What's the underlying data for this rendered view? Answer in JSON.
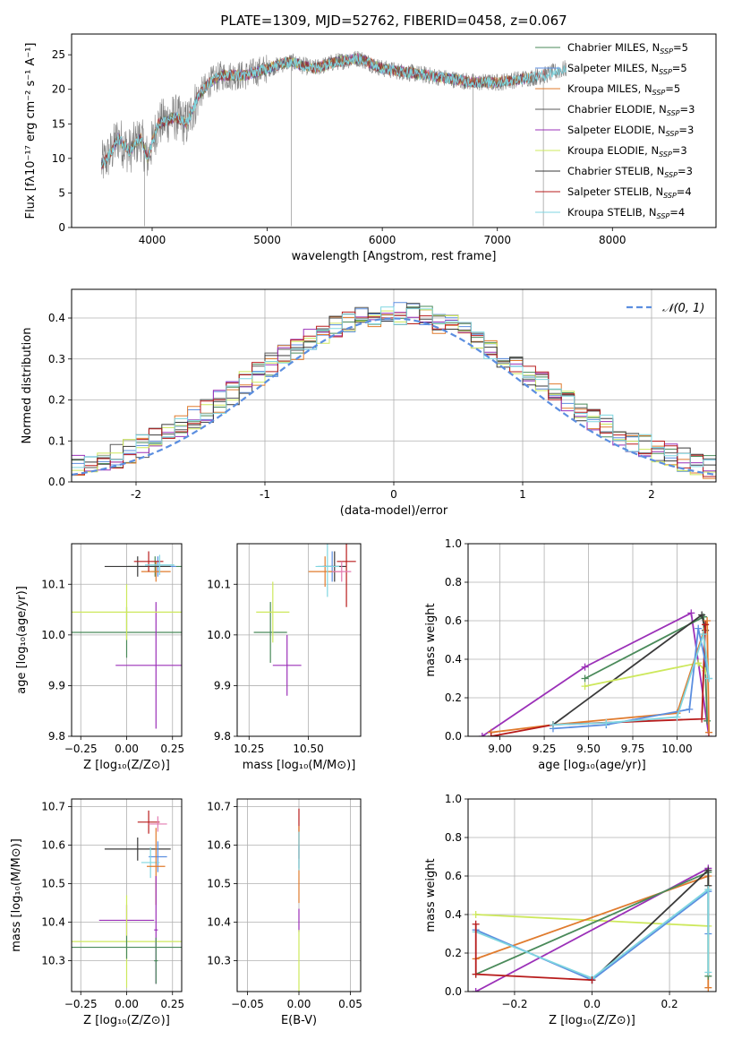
{
  "chart_data": [
    {
      "id": "spectrum",
      "type": "line",
      "title": "PLATE=1309, MJD=52762, FIBERID=0458, z=0.067",
      "xlabel": "wavelength [Angstrom, rest frame]",
      "ylabel": "Flux [fλ10⁻¹⁷ erg cm⁻² s⁻¹ A⁻¹]",
      "xlim": [
        3300,
        8900
      ],
      "ylim": [
        0,
        28
      ],
      "xticks": [
        4000,
        5000,
        6000,
        7000,
        8000
      ],
      "yticks": [
        0,
        5,
        10,
        15,
        20,
        25
      ],
      "grid": false,
      "legend_position": "right",
      "spectrum_profile": {
        "x": [
          3560,
          3650,
          3700,
          3800,
          3900,
          3960,
          4050,
          4200,
          4300,
          4400,
          4500,
          4600,
          4700,
          4800,
          5000,
          5200,
          5400,
          5600,
          5800,
          6000,
          6200,
          6400,
          6600,
          6800,
          7000,
          7200,
          7400,
          7500,
          7600
        ],
        "y": [
          9,
          11,
          13,
          11,
          13,
          10,
          15,
          16,
          15,
          19,
          21,
          22,
          22,
          22,
          23,
          24,
          23,
          24,
          24.5,
          23,
          22.5,
          22,
          21.5,
          21,
          21,
          21.5,
          22,
          22.5,
          23
        ]
      },
      "series": [
        {
          "name": "Chabrier MILES, N",
          "sub": "SSP",
          "suffix": "=5",
          "color": "#4a8a5a"
        },
        {
          "name": "Salpeter MILES, N",
          "sub": "SSP",
          "suffix": "=5",
          "color": "#5b8ee0"
        },
        {
          "name": "Kroupa MILES, N",
          "sub": "SSP",
          "suffix": "=5",
          "color": "#e07b2e"
        },
        {
          "name": "Chabrier ELODIE, N",
          "sub": "SSP",
          "suffix": "=3",
          "color": "#595959"
        },
        {
          "name": "Salpeter ELODIE, N",
          "sub": "SSP",
          "suffix": "=3",
          "color": "#9b30b8"
        },
        {
          "name": "Kroupa ELODIE, N",
          "sub": "SSP",
          "suffix": "=3",
          "color": "#cde85c"
        },
        {
          "name": "Chabrier STELIB, N",
          "sub": "SSP",
          "suffix": "=3",
          "color": "#3a3a3a"
        },
        {
          "name": "Salpeter STELIB, N",
          "sub": "SSP",
          "suffix": "=4",
          "color": "#b81c1c"
        },
        {
          "name": "Kroupa STELIB, N",
          "sub": "SSP",
          "suffix": "=4",
          "color": "#7fd6e0"
        }
      ]
    },
    {
      "id": "residuals",
      "type": "line",
      "xlabel": "(data-model)/error",
      "ylabel": "Normed distribution",
      "xlim": [
        -2.5,
        2.5
      ],
      "ylim": [
        0,
        0.47
      ],
      "xticks": [
        -2,
        -1,
        0,
        1,
        2
      ],
      "yticks": [
        0.0,
        0.1,
        0.2,
        0.3,
        0.4
      ],
      "grid": true,
      "legend_position": "top-right",
      "normal_label": "𝒩(0, 1)",
      "normal_color": "#5b8ee0",
      "bin_width": 0.1
    },
    {
      "id": "age_vs_Z",
      "type": "scatter",
      "xlabel": "Z [log₁₀(Z/Z⊙)]",
      "ylabel": "age  [log₁₀(age/yr)]",
      "xlim": [
        -0.3,
        0.3
      ],
      "ylim": [
        9.8,
        10.18
      ],
      "xticks": [
        -0.25,
        0.0,
        0.25
      ],
      "yticks": [
        9.8,
        9.9,
        10.0,
        10.1
      ],
      "grid": true,
      "points": [
        {
          "x": 0.155,
          "y": 10.135,
          "xerr": 0.15,
          "yerr": 0.02,
          "color": "#4a8a5a"
        },
        {
          "x": 0.17,
          "y": 10.135,
          "xerr": 0.1,
          "yerr": 0.02,
          "color": "#5b8ee0"
        },
        {
          "x": 0.16,
          "y": 10.125,
          "xerr": 0.08,
          "yerr": 0.02,
          "color": "#e07b2e"
        },
        {
          "x": 0.0,
          "y": 10.005,
          "xerr": 0.3,
          "yerr": 0.05,
          "color": "#4a8a5a"
        },
        {
          "x": 0.16,
          "y": 9.94,
          "xerr": 0.22,
          "yerr": 0.125,
          "color": "#9b30b8"
        },
        {
          "x": 0.0,
          "y": 10.045,
          "xerr": 0.3,
          "yerr": 0.055,
          "color": "#cde85c"
        },
        {
          "x": 0.06,
          "y": 10.135,
          "xerr": 0.18,
          "yerr": 0.02,
          "color": "#3a3a3a"
        },
        {
          "x": 0.12,
          "y": 10.145,
          "xerr": 0.08,
          "yerr": 0.02,
          "color": "#b81c1c"
        },
        {
          "x": 0.18,
          "y": 10.138,
          "xerr": 0.08,
          "yerr": 0.02,
          "color": "#7fd6e0"
        }
      ]
    },
    {
      "id": "age_vs_mass",
      "type": "scatter",
      "xlabel": "mass [log₁₀(M/M⊙)]",
      "ylabel": "",
      "xlim": [
        10.2,
        10.72
      ],
      "ylim": [
        9.8,
        10.18
      ],
      "xticks": [
        10.25,
        10.5
      ],
      "xticklabels": [
        "10.25",
        "10.50"
      ],
      "yticks": [
        9.8,
        9.9,
        10.0,
        10.1
      ],
      "grid": true,
      "points": [
        {
          "x": 10.6,
          "y": 10.135,
          "xerr": 0.06,
          "yerr": 0.03,
          "color": "#5b8ee0"
        },
        {
          "x": 10.57,
          "y": 10.125,
          "xerr": 0.07,
          "yerr": 0.03,
          "color": "#e07b2e"
        },
        {
          "x": 10.61,
          "y": 10.135,
          "xerr": 0.05,
          "yerr": 0.03,
          "color": "#3a3a3a"
        },
        {
          "x": 10.34,
          "y": 10.005,
          "xerr": 0.07,
          "yerr": 0.06,
          "color": "#4a8a5a"
        },
        {
          "x": 10.41,
          "y": 9.94,
          "xerr": 0.06,
          "yerr": 0.06,
          "color": "#9b30b8"
        },
        {
          "x": 10.35,
          "y": 10.045,
          "xerr": 0.07,
          "yerr": 0.06,
          "color": "#cde85c"
        },
        {
          "x": 10.66,
          "y": 10.145,
          "xerr": 0.04,
          "yerr": 0.09,
          "color": "#b81c1c"
        },
        {
          "x": 10.64,
          "y": 10.125,
          "xerr": 0.04,
          "yerr": 0.02,
          "color": "#e37bb0"
        },
        {
          "x": 10.58,
          "y": 10.135,
          "xerr": 0.05,
          "yerr": 0.06,
          "color": "#7fd6e0"
        }
      ]
    },
    {
      "id": "weight_vs_age",
      "type": "line",
      "xlabel": "age  [log₁₀(age/yr)]",
      "ylabel": "mass weight",
      "xlim": [
        8.82,
        10.22
      ],
      "ylim": [
        0.0,
        1.0
      ],
      "xticks": [
        9.0,
        9.25,
        9.5,
        9.75,
        10.0
      ],
      "xticklabels": [
        "9.00",
        "9.25",
        "9.50",
        "9.75",
        "10.00"
      ],
      "yticks": [
        0.0,
        0.2,
        0.4,
        0.6,
        0.8,
        1.0
      ],
      "yticklabels": [
        "0.0",
        "0.2",
        "0.4",
        "0.6",
        "0.8",
        "1.0"
      ],
      "grid": true,
      "series": [
        {
          "color": "#9b30b8",
          "x": [
            8.9,
            9.48,
            10.08,
            10.18
          ],
          "y": [
            0.0,
            0.36,
            0.64,
            0.0
          ]
        },
        {
          "color": "#4a8a5a",
          "x": [
            9.48,
            10.15,
            10.17
          ],
          "y": [
            0.3,
            0.62,
            0.08
          ]
        },
        {
          "color": "#3a3a3a",
          "x": [
            9.3,
            10.14,
            10.16
          ],
          "y": [
            0.06,
            0.63,
            0.55
          ]
        },
        {
          "color": "#cde85c",
          "x": [
            9.48,
            10.12,
            10.16
          ],
          "y": [
            0.26,
            0.38,
            0.34
          ]
        },
        {
          "color": "#e07b2e",
          "x": [
            8.95,
            9.3,
            10.0,
            10.17,
            10.18
          ],
          "y": [
            0.02,
            0.06,
            0.12,
            0.6,
            0.02
          ]
        },
        {
          "color": "#b81c1c",
          "x": [
            8.95,
            9.3,
            10.14,
            10.16
          ],
          "y": [
            0.0,
            0.06,
            0.09,
            0.58
          ]
        },
        {
          "color": "#5b8ee0",
          "x": [
            9.3,
            9.6,
            10.07,
            10.12,
            10.18
          ],
          "y": [
            0.04,
            0.06,
            0.14,
            0.56,
            0.3
          ]
        },
        {
          "color": "#7fd6e0",
          "x": [
            9.3,
            9.6,
            10.0,
            10.15,
            10.18
          ],
          "y": [
            0.06,
            0.07,
            0.1,
            0.53,
            0.3
          ]
        }
      ]
    },
    {
      "id": "mass_vs_Z",
      "type": "scatter",
      "xlabel": "Z [log₁₀(Z/Z⊙)]",
      "ylabel": "mass [log₁₀(M/M⊙)]",
      "xlim": [
        -0.3,
        0.3
      ],
      "ylim": [
        10.22,
        10.72
      ],
      "xticks": [
        -0.25,
        0.0,
        0.25
      ],
      "yticks": [
        10.3,
        10.4,
        10.5,
        10.6,
        10.7
      ],
      "grid": true,
      "points": [
        {
          "x": 0.12,
          "y": 10.66,
          "xerr": 0.06,
          "yerr": 0.03,
          "color": "#b81c1c"
        },
        {
          "x": 0.17,
          "y": 10.655,
          "xerr": 0.05,
          "yerr": 0.02,
          "color": "#e37bb0"
        },
        {
          "x": 0.06,
          "y": 10.59,
          "xerr": 0.18,
          "yerr": 0.03,
          "color": "#3a3a3a"
        },
        {
          "x": 0.17,
          "y": 10.57,
          "xerr": 0.05,
          "yerr": 0.04,
          "color": "#5b8ee0"
        },
        {
          "x": 0.13,
          "y": 10.555,
          "xerr": 0.05,
          "yerr": 0.04,
          "color": "#7fd6e0"
        },
        {
          "x": 0.16,
          "y": 10.545,
          "xerr": 0.05,
          "yerr": 0.1,
          "color": "#e07b2e"
        },
        {
          "x": 0.0,
          "y": 10.405,
          "xerr": 0.15,
          "yerr": 0.04,
          "color": "#9b30b8"
        },
        {
          "x": 0.16,
          "y": 10.38,
          "xerr": 0.01,
          "yerr": 0.14,
          "color": "#9b30b8"
        },
        {
          "x": 0.0,
          "y": 10.35,
          "xerr": 0.3,
          "yerr": 0.12,
          "color": "#cde85c"
        },
        {
          "x": 0.0,
          "y": 10.335,
          "xerr": 0.3,
          "yerr": 0.03,
          "color": "#4a8a5a"
        },
        {
          "x": 0.16,
          "y": 10.3,
          "xerr": 0.01,
          "yerr": 0.06,
          "color": "#4a8a5a"
        }
      ]
    },
    {
      "id": "mass_vs_ebv",
      "type": "scatter",
      "xlabel": "E(B-V)",
      "ylabel": "",
      "xlim": [
        -0.06,
        0.06
      ],
      "ylim": [
        10.22,
        10.72
      ],
      "xticks": [
        -0.05,
        0.0,
        0.05
      ],
      "xticklabels": [
        "−0.05",
        "0.00",
        "0.05"
      ],
      "yticks": [
        10.3,
        10.4,
        10.5,
        10.6,
        10.7
      ],
      "grid": true,
      "points": [
        {
          "x": 0.0,
          "y": 10.63,
          "xerr": 0.0,
          "yerr": 0.065,
          "color": "#b81c1c"
        },
        {
          "x": 0.0,
          "y": 10.57,
          "xerr": 0.0,
          "yerr": 0.03,
          "color": "#5b8ee0"
        },
        {
          "x": 0.0,
          "y": 10.55,
          "xerr": 0.0,
          "yerr": 0.1,
          "color": "#e07b2e"
        },
        {
          "x": 0.0,
          "y": 10.405,
          "xerr": 0.0,
          "yerr": 0.03,
          "color": "#9b30b8"
        },
        {
          "x": 0.0,
          "y": 10.3,
          "xerr": 0.0,
          "yerr": 0.08,
          "color": "#cde85c"
        },
        {
          "x": 0.0,
          "y": 10.585,
          "xerr": 0.0,
          "yerr": 0.05,
          "color": "#7fd6e0"
        }
      ]
    },
    {
      "id": "weight_vs_Z",
      "type": "line",
      "xlabel": "Z [log₁₀(Z/Z⊙)]",
      "ylabel": "mass weight",
      "xlim": [
        -0.32,
        0.32
      ],
      "ylim": [
        0.0,
        1.0
      ],
      "xticks": [
        -0.2,
        0.0,
        0.2
      ],
      "xticklabels": [
        "−0.2",
        "0.0",
        "0.2"
      ],
      "yticks": [
        0.0,
        0.2,
        0.4,
        0.6,
        0.8,
        1.0
      ],
      "yticklabels": [
        "0.0",
        "0.2",
        "0.4",
        "0.6",
        "0.8",
        "1.0"
      ],
      "grid": true,
      "series": [
        {
          "color": "#cde85c",
          "x": [
            -0.3,
            0.3
          ],
          "y": [
            0.4,
            0.34
          ]
        },
        {
          "color": "#9b30b8",
          "x": [
            -0.3,
            0.3
          ],
          "y": [
            0.0,
            0.64
          ]
        },
        {
          "color": "#e07b2e",
          "x": [
            -0.3,
            0.3,
            0.3
          ],
          "y": [
            0.17,
            0.6,
            0.02
          ]
        },
        {
          "color": "#4a8a5a",
          "x": [
            -0.3,
            0.3,
            0.3
          ],
          "y": [
            0.09,
            0.62,
            0.08
          ]
        },
        {
          "color": "#3a3a3a",
          "x": [
            0.0,
            0.3,
            0.3
          ],
          "y": [
            0.06,
            0.63,
            0.55
          ]
        },
        {
          "color": "#5b8ee0",
          "x": [
            -0.3,
            0.0,
            0.3,
            0.3
          ],
          "y": [
            0.32,
            0.06,
            0.52,
            0.3
          ]
        },
        {
          "color": "#7fd6e0",
          "x": [
            -0.3,
            0.0,
            0.3,
            0.3
          ],
          "y": [
            0.31,
            0.07,
            0.53,
            0.1
          ]
        },
        {
          "color": "#b81c1c",
          "x": [
            -0.3,
            -0.3,
            0.0
          ],
          "y": [
            0.35,
            0.09,
            0.06
          ]
        }
      ]
    }
  ]
}
